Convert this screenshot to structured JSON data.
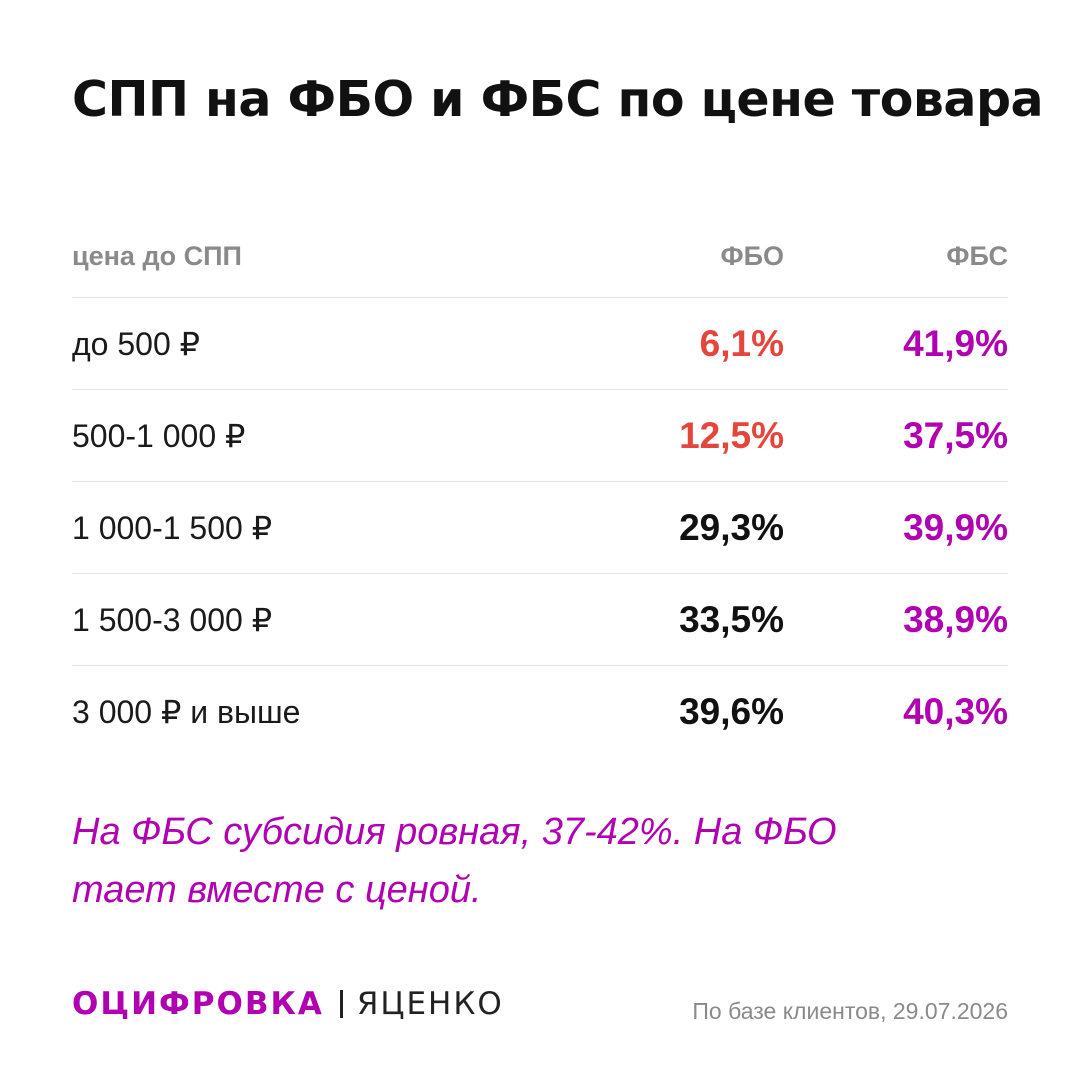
{
  "title": "СПП на ФБО и ФБС по цене товара",
  "colors": {
    "fbo_low": "#e5453b",
    "fbo_normal": "#111111",
    "fbs": "#b000b2",
    "accent": "#b000b2",
    "muted": "#8a8a8a"
  },
  "table": {
    "headers": {
      "price": "цена до СПП",
      "fbo": "ФБО",
      "fbs": "ФБС"
    },
    "rows": [
      {
        "price": "до 500 ₽",
        "fbo": "6,1%",
        "fbs": "41,9%",
        "fbo_color": "#e5453b"
      },
      {
        "price": "500-1 000 ₽",
        "fbo": "12,5%",
        "fbs": "37,5%",
        "fbo_color": "#e5453b"
      },
      {
        "price": "1 000-1 500 ₽",
        "fbo": "29,3%",
        "fbs": "39,9%",
        "fbo_color": "#111111"
      },
      {
        "price": "1 500-3 000 ₽",
        "fbo": "33,5%",
        "fbs": "38,9%",
        "fbo_color": "#111111"
      },
      {
        "price": "3 000 ₽ и выше",
        "fbo": "39,6%",
        "fbs": "40,3%",
        "fbo_color": "#111111"
      }
    ]
  },
  "note": {
    "line1": "На ФБС субсидия ровная, 37-42%. На ФБО",
    "line2": "тает вместе с ценой."
  },
  "footer": {
    "brand": "ОЦИФРОВКА",
    "author": "ЯЦЕНКО",
    "source": "По базе клиентов, 29.07.2026"
  }
}
